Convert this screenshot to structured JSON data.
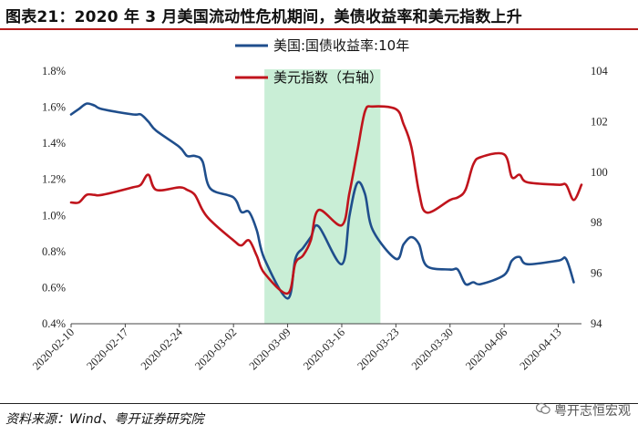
{
  "figure": {
    "title": "图表21：2020 年 3 月美国流动性危机期间，美债收益率和美元指数上升",
    "source": "资料来源：Wind、粤开证券研究院",
    "watermark": "粤开志恒宏观"
  },
  "chart_data": {
    "type": "line",
    "x_tick_labels": [
      "2020-02-10",
      "2020-02-17",
      "2020-02-24",
      "2020-03-02",
      "2020-03-09",
      "2020-03-16",
      "2020-03-23",
      "2020-03-30",
      "2020-04-06",
      "2020-04-13"
    ],
    "x_range": [
      "2020-02-10",
      "2020-04-16"
    ],
    "highlight_range": [
      "2020-03-06",
      "2020-03-21"
    ],
    "highlight_color": "#c9eed6",
    "y_left": {
      "ticks": [
        "0.4%",
        "0.6%",
        "0.8%",
        "1.0%",
        "1.2%",
        "1.4%",
        "1.6%",
        "1.8%"
      ],
      "range": [
        0.4,
        1.8
      ]
    },
    "y_right": {
      "ticks": [
        "94",
        "96",
        "98",
        "100",
        "102",
        "104"
      ],
      "range": [
        94,
        104
      ]
    },
    "legend_position": "top-center",
    "series": [
      {
        "name": "美国:国债收益率:10年",
        "axis": "left",
        "color": "#1f4e8c",
        "dates": [
          "2020-02-10",
          "2020-02-11",
          "2020-02-12",
          "2020-02-13",
          "2020-02-14",
          "2020-02-18",
          "2020-02-19",
          "2020-02-20",
          "2020-02-21",
          "2020-02-24",
          "2020-02-25",
          "2020-02-26",
          "2020-02-27",
          "2020-02-28",
          "2020-03-02",
          "2020-03-03",
          "2020-03-04",
          "2020-03-05",
          "2020-03-06",
          "2020-03-09",
          "2020-03-10",
          "2020-03-11",
          "2020-03-12",
          "2020-03-13",
          "2020-03-16",
          "2020-03-17",
          "2020-03-18",
          "2020-03-19",
          "2020-03-20",
          "2020-03-23",
          "2020-03-24",
          "2020-03-25",
          "2020-03-26",
          "2020-03-27",
          "2020-03-30",
          "2020-03-31",
          "2020-04-01",
          "2020-04-02",
          "2020-04-03",
          "2020-04-06",
          "2020-04-07",
          "2020-04-08",
          "2020-04-09",
          "2020-04-13",
          "2020-04-14",
          "2020-04-15"
        ],
        "values": [
          1.56,
          1.59,
          1.62,
          1.61,
          1.59,
          1.56,
          1.56,
          1.52,
          1.47,
          1.38,
          1.33,
          1.33,
          1.3,
          1.15,
          1.1,
          1.02,
          1.02,
          0.92,
          0.76,
          0.54,
          0.76,
          0.82,
          0.88,
          0.94,
          0.73,
          1.0,
          1.18,
          1.12,
          0.92,
          0.76,
          0.84,
          0.88,
          0.84,
          0.72,
          0.7,
          0.7,
          0.62,
          0.63,
          0.62,
          0.67,
          0.75,
          0.77,
          0.73,
          0.75,
          0.76,
          0.63
        ]
      },
      {
        "name": "美元指数（右轴）",
        "axis": "right",
        "color": "#c0141c",
        "dates": [
          "2020-02-10",
          "2020-02-11",
          "2020-02-12",
          "2020-02-13",
          "2020-02-14",
          "2020-02-18",
          "2020-02-19",
          "2020-02-20",
          "2020-02-21",
          "2020-02-24",
          "2020-02-25",
          "2020-02-26",
          "2020-02-27",
          "2020-02-28",
          "2020-03-02",
          "2020-03-03",
          "2020-03-04",
          "2020-03-05",
          "2020-03-06",
          "2020-03-09",
          "2020-03-10",
          "2020-03-11",
          "2020-03-12",
          "2020-03-13",
          "2020-03-16",
          "2020-03-17",
          "2020-03-18",
          "2020-03-19",
          "2020-03-20",
          "2020-03-23",
          "2020-03-24",
          "2020-03-25",
          "2020-03-26",
          "2020-03-27",
          "2020-03-30",
          "2020-03-31",
          "2020-04-01",
          "2020-04-02",
          "2020-04-03",
          "2020-04-06",
          "2020-04-07",
          "2020-04-08",
          "2020-04-09",
          "2020-04-13",
          "2020-04-14",
          "2020-04-15",
          "2020-04-16"
        ],
        "values": [
          98.8,
          98.8,
          99.1,
          99.1,
          99.1,
          99.4,
          99.5,
          99.9,
          99.3,
          99.4,
          99.3,
          99.1,
          98.5,
          98.1,
          97.3,
          97.1,
          97.3,
          96.7,
          96.0,
          95.2,
          96.4,
          96.7,
          97.3,
          98.5,
          97.9,
          99.2,
          100.8,
          102.4,
          102.6,
          102.5,
          101.9,
          101.0,
          99.2,
          98.4,
          98.9,
          99.0,
          99.3,
          100.3,
          100.6,
          100.7,
          99.8,
          99.9,
          99.6,
          99.5,
          99.5,
          98.9,
          99.5
        ]
      }
    ]
  }
}
